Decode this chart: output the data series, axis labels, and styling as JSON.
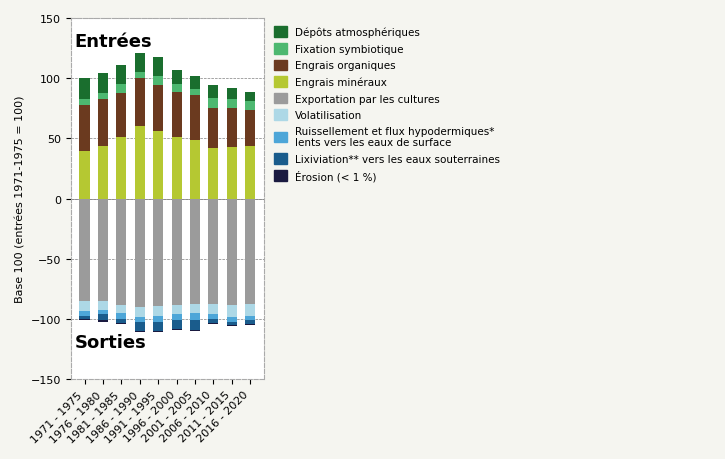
{
  "categories": [
    "1971 - 1975",
    "1976 - 1980",
    "1981 - 1985",
    "1986 - 1990",
    "1991 - 1995",
    "1996 - 2000",
    "2001 - 2005",
    "2006 - 2010",
    "2011 - 2015",
    "2016 - 2020"
  ],
  "positive_series": {
    "Engrais minéraux": [
      40,
      44,
      51,
      60,
      56,
      51,
      49,
      42,
      43,
      44
    ],
    "Engrais organiques": [
      38,
      39,
      37,
      40,
      38,
      38,
      37,
      33,
      32,
      30
    ],
    "Fixation symbiotique": [
      5,
      5,
      7,
      5,
      8,
      6,
      5,
      9,
      8,
      7
    ],
    "Dépôts atmosphériques": [
      17,
      16,
      16,
      16,
      16,
      12,
      11,
      10,
      9,
      8
    ]
  },
  "negative_series": {
    "Exportation par les cultures": [
      -85,
      -85,
      -88,
      -90,
      -89,
      -88,
      -87,
      -87,
      -88,
      -87
    ],
    "Volatilisation": [
      -8,
      -7,
      -7,
      -8,
      -8,
      -8,
      -8,
      -9,
      -10,
      -10
    ],
    "Ruissellement": [
      -4,
      -4,
      -5,
      -4,
      -5,
      -5,
      -6,
      -4,
      -4,
      -4
    ],
    "Lixiviation": [
      -3,
      -5,
      -3,
      -8,
      -8,
      -7,
      -8,
      -3,
      -3,
      -3
    ],
    "Érosion": [
      -1,
      -1,
      -1,
      -1,
      -1,
      -1,
      -1,
      -1,
      -1,
      -1
    ]
  },
  "colors": {
    "Engrais minéraux": "#b5c832",
    "Engrais organiques": "#6b3a1f",
    "Fixation symbiotique": "#4db870",
    "Dépôts atmosphériques": "#1a6e2e",
    "Exportation par les cultures": "#9b9b9b",
    "Volatilisation": "#add8e6",
    "Ruissellement": "#4da6d8",
    "Lixiviation": "#1a5c8c",
    "Érosion": "#1a1a40"
  },
  "legend_labels": [
    "Dépôts atmosphériques",
    "Fixation symbiotique",
    "Engrais organiques",
    "Engrais minéraux",
    "Exportation par les cultures",
    "Volatilisation",
    "Ruissellement et flux hypodermiques*\nlents vers les eaux de surface",
    "Lixiviation** vers les eaux souterraines",
    "Érosion (< 1 %)"
  ],
  "legend_colors": [
    "#1a6e2e",
    "#4db870",
    "#6b3a1f",
    "#b5c832",
    "#9b9b9b",
    "#add8e6",
    "#4da6d8",
    "#1a5c8c",
    "#1a1a40"
  ],
  "ylabel": "Base 100 (entrées 1971-1975 = 100)",
  "ylim": [
    -150,
    150
  ],
  "yticks": [
    -150,
    -100,
    -50,
    0,
    50,
    100,
    150
  ],
  "entrees_label": "Entrées",
  "sorties_label": "Sorties",
  "background_color": "#f5f5f0",
  "plot_bg": "#ffffff"
}
